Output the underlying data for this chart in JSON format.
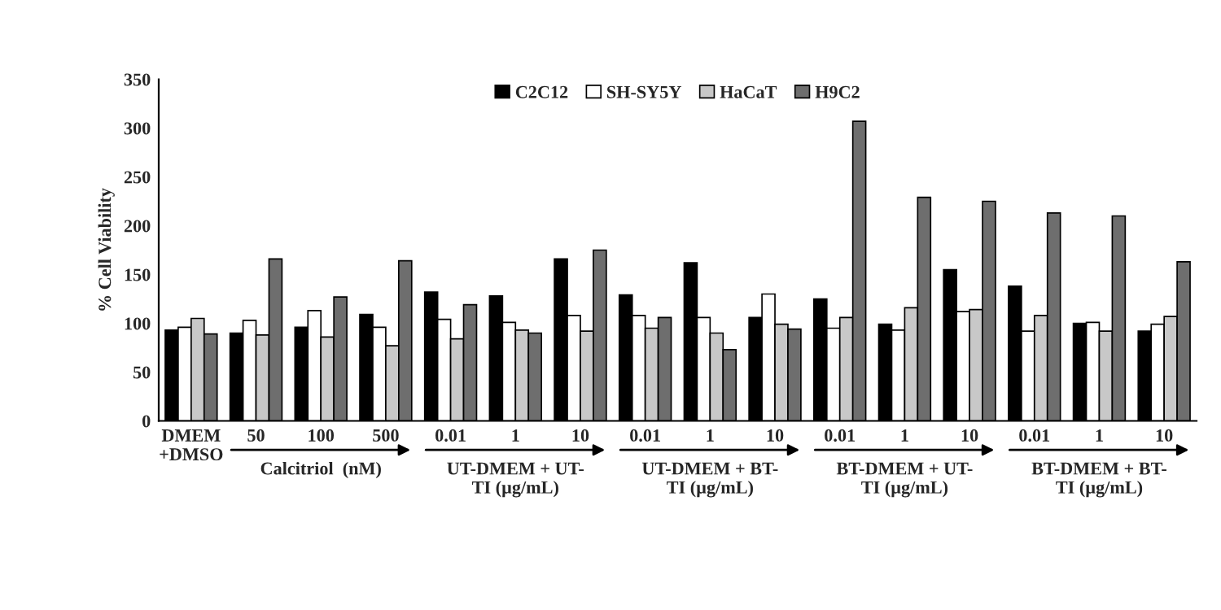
{
  "chart_data": {
    "type": "bar",
    "ylabel": "% Cell Viability",
    "categories": [
      "DMEM\n+DMSO",
      "50",
      "100",
      "500",
      "0.01",
      "1",
      "10",
      "0.01",
      "1",
      "10",
      "0.01",
      "1",
      "10",
      "0.01",
      "1",
      "10"
    ],
    "series": [
      {
        "name": "C2C12",
        "color": "#000000",
        "values": [
          93,
          90,
          96,
          109,
          132,
          128,
          166,
          129,
          162,
          106,
          125,
          99,
          155,
          138,
          100,
          92
        ]
      },
      {
        "name": "SH-SY5Y",
        "color": "#ffffff",
        "values": [
          96,
          103,
          113,
          96,
          104,
          101,
          108,
          108,
          106,
          130,
          95,
          93,
          112,
          92,
          101,
          99
        ]
      },
      {
        "name": "HaCaT",
        "color": "#c8c8c8",
        "values": [
          105,
          88,
          86,
          77,
          84,
          93,
          92,
          95,
          90,
          99,
          106,
          116,
          114,
          108,
          92,
          107
        ]
      },
      {
        "name": "H9C2",
        "color": "#6e6e6e",
        "values": [
          89,
          166,
          127,
          164,
          119,
          90,
          175,
          106,
          73,
          94,
          307,
          229,
          225,
          213,
          210,
          163
        ]
      }
    ],
    "ylim": [
      0,
      350
    ],
    "yticks": [
      0,
      50,
      100,
      150,
      200,
      250,
      300,
      350
    ],
    "legend": "top",
    "annotations": [
      "Calcitriol  (nM)",
      "UT-DMEM + UT-\nTI (µg/mL)",
      "UT-DMEM + BT-\nTI (µg/mL)",
      "BT-DMEM + UT-\nTI (µg/mL)",
      "BT-DMEM + BT-\nTI (µg/mL)"
    ]
  }
}
